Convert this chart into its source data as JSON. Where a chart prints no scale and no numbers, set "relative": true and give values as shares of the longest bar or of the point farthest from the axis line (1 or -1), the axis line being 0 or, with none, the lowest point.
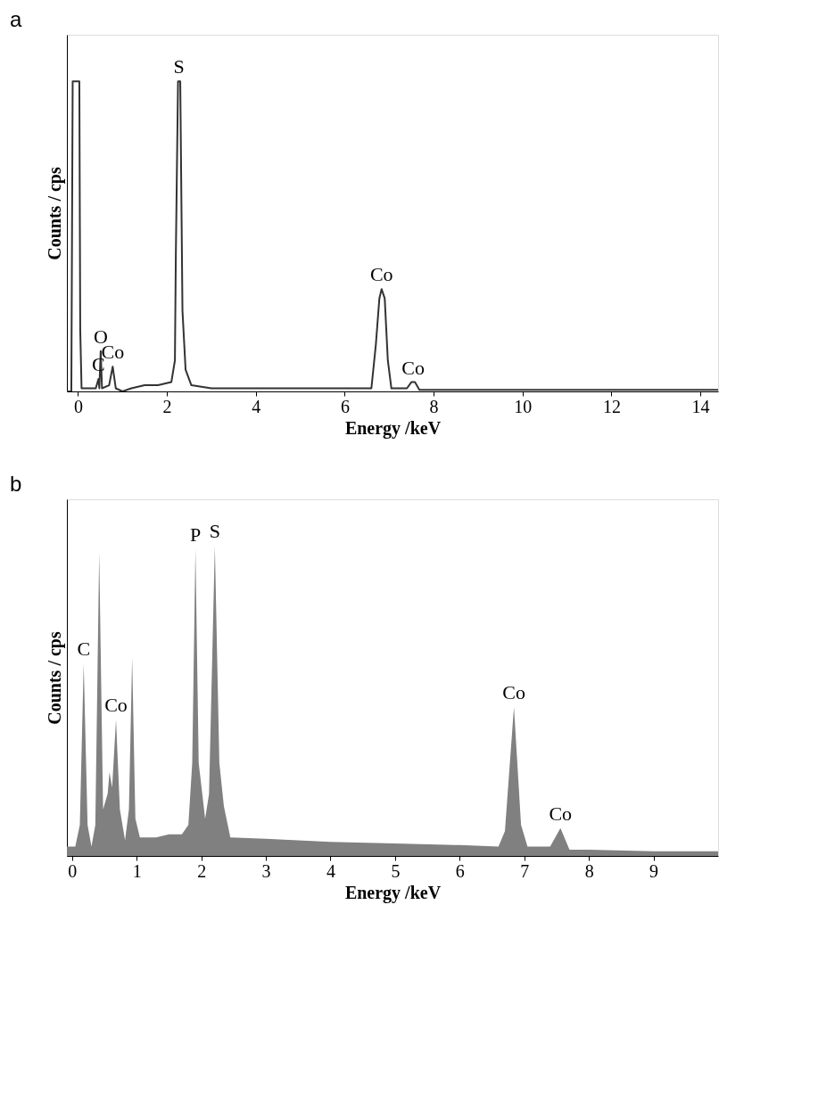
{
  "chart_data": [
    {
      "type": "line",
      "title": "a",
      "xlabel": "Energy /keV",
      "ylabel": "Counts / cps",
      "relative": true,
      "tick_labels": "x",
      "xlim": [
        -0.25,
        14.4
      ],
      "xticks": [
        0,
        2,
        4,
        6,
        8,
        10,
        12,
        14
      ],
      "x": [
        -0.25,
        -0.15,
        -0.12,
        0.0,
        0.03,
        0.05,
        0.08,
        0.2,
        0.4,
        0.46,
        0.48,
        0.51,
        0.54,
        0.7,
        0.78,
        0.85,
        1.0,
        1.2,
        1.5,
        1.8,
        2.1,
        2.18,
        2.2,
        2.25,
        2.3,
        2.35,
        2.42,
        2.55,
        3,
        4,
        5,
        6,
        6.6,
        6.7,
        6.78,
        6.83,
        6.9,
        6.97,
        7.05,
        7.4,
        7.5,
        7.58,
        7.68,
        8,
        10,
        12,
        14,
        14.4
      ],
      "series": [
        {
          "color": "#333333",
          "values": [
            0,
            0,
            1,
            1,
            1,
            0.2,
            0.01,
            0.01,
            0.01,
            0.04,
            0.01,
            0.13,
            0.01,
            0.02,
            0.08,
            0.01,
            0.0,
            0.01,
            0.02,
            0.02,
            0.03,
            0.1,
            0.43,
            1,
            1,
            0.26,
            0.07,
            0.02,
            0.01,
            0.01,
            0.01,
            0.01,
            0.01,
            0.15,
            0.3,
            0.33,
            0.3,
            0.1,
            0.01,
            0.01,
            0.03,
            0.03,
            0.005,
            0.005,
            0.005,
            0.005,
            0.005,
            0.005
          ]
        }
      ],
      "annotations": [
        {
          "text": "C",
          "x": 0.46,
          "y": 0.04
        },
        {
          "text": "O",
          "x": 0.51,
          "y": 0.13
        },
        {
          "text": "Co",
          "x": 0.78,
          "y": 0.08
        },
        {
          "text": "S",
          "x": 2.27,
          "y": 1
        },
        {
          "text": "Co",
          "x": 6.83,
          "y": 0.33
        },
        {
          "text": "Co",
          "x": 7.54,
          "y": 0.03
        }
      ]
    },
    {
      "type": "area",
      "title": "b",
      "xlabel": "Energy /keV",
      "ylabel": "Counts / cps",
      "relative": true,
      "tick_labels": "x",
      "xlim": [
        -0.08,
        10.0
      ],
      "xticks": [
        0,
        1,
        2,
        3,
        4,
        5,
        6,
        7,
        8,
        9
      ],
      "x": [
        -0.08,
        0.05,
        0.12,
        0.18,
        0.24,
        0.3,
        0.36,
        0.42,
        0.48,
        0.55,
        0.58,
        0.62,
        0.68,
        0.74,
        0.82,
        0.88,
        0.93,
        0.98,
        1.05,
        1.3,
        1.5,
        1.7,
        1.8,
        1.86,
        1.91,
        1.96,
        2.06,
        2.12,
        2.21,
        2.28,
        2.35,
        2.45,
        3,
        4,
        5,
        6,
        6.6,
        6.7,
        6.84,
        6.95,
        7.05,
        7.4,
        7.56,
        7.7,
        8,
        9,
        10
      ],
      "series": [
        {
          "color": "#808080",
          "values": [
            0.03,
            0.03,
            0.1,
            0.62,
            0.1,
            0.03,
            0.1,
            0.98,
            0.15,
            0.2,
            0.27,
            0.22,
            0.44,
            0.15,
            0.05,
            0.15,
            0.64,
            0.12,
            0.06,
            0.06,
            0.07,
            0.07,
            0.1,
            0.3,
            0.99,
            0.3,
            0.12,
            0.2,
            1,
            0.3,
            0.16,
            0.06,
            0.055,
            0.045,
            0.04,
            0.035,
            0.03,
            0.08,
            0.48,
            0.1,
            0.03,
            0.03,
            0.09,
            0.02,
            0.02,
            0.015,
            0.015
          ]
        }
      ],
      "annotations": [
        {
          "text": "C",
          "x": 0.18,
          "y": 0.62
        },
        {
          "text": "Co",
          "x": 0.68,
          "y": 0.44
        },
        {
          "text": "P",
          "x": 1.91,
          "y": 0.99
        },
        {
          "text": "S",
          "x": 2.21,
          "y": 1
        },
        {
          "text": "Co",
          "x": 6.84,
          "y": 0.48
        },
        {
          "text": "Co",
          "x": 7.56,
          "y": 0.09
        }
      ]
    }
  ]
}
